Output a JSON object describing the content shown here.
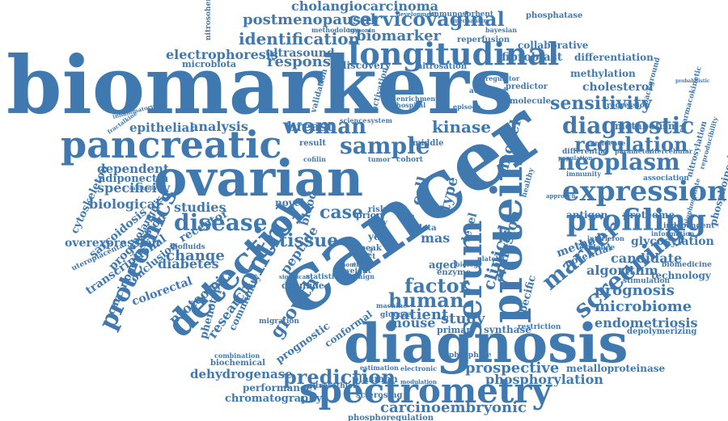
{
  "color": "#3f79b0",
  "words": [
    {
      "text": "cancer"
    },
    {
      "text": "biomarkers"
    },
    {
      "text": "ovarian"
    },
    {
      "text": "diagnosis"
    },
    {
      "text": "pancreatic"
    },
    {
      "text": "spectrometry"
    },
    {
      "text": "longitudinal"
    },
    {
      "text": "protein"
    },
    {
      "text": "detection"
    },
    {
      "text": "serum"
    },
    {
      "text": "expression"
    },
    {
      "text": "proteomics"
    },
    {
      "text": "profiling"
    },
    {
      "text": "control"
    },
    {
      "text": "diagnostic"
    },
    {
      "text": "screening"
    },
    {
      "text": "sample"
    },
    {
      "text": "woman"
    },
    {
      "text": "neoplasm"
    },
    {
      "text": "regulation"
    },
    {
      "text": "disease"
    },
    {
      "text": "factor"
    },
    {
      "text": "marker"
    },
    {
      "text": "sensitivity"
    },
    {
      "text": "prediction"
    },
    {
      "text": "human"
    },
    {
      "text": "patient"
    },
    {
      "text": "identification"
    },
    {
      "text": "response"
    },
    {
      "text": "cervicovaginal"
    },
    {
      "text": "postmenopausal"
    },
    {
      "text": "cholangiocarcinoma"
    },
    {
      "text": "biomarker"
    },
    {
      "text": "electrophoresis"
    },
    {
      "text": "ultrasound"
    },
    {
      "text": "analysis"
    },
    {
      "text": "epithelial"
    },
    {
      "text": "breast"
    },
    {
      "text": "kinase"
    },
    {
      "text": "tissue"
    },
    {
      "text": "clinical"
    },
    {
      "text": "case"
    },
    {
      "text": "change"
    },
    {
      "text": "biological"
    },
    {
      "text": "specificity"
    },
    {
      "text": "dependent"
    },
    {
      "text": "adiponectin"
    },
    {
      "text": "studies"
    },
    {
      "text": "diabetes"
    },
    {
      "text": "colorectal"
    },
    {
      "text": "proteomic"
    },
    {
      "text": "research"
    },
    {
      "text": "growth"
    },
    {
      "text": "mouse"
    },
    {
      "text": "study"
    },
    {
      "text": "adhesion"
    },
    {
      "text": "prognosis"
    },
    {
      "text": "microbiome"
    },
    {
      "text": "endometriosis"
    },
    {
      "text": "algorithm"
    },
    {
      "text": "candidate"
    },
    {
      "text": "glycosylation"
    },
    {
      "text": "proteome"
    },
    {
      "text": "antigen"
    },
    {
      "text": "method"
    },
    {
      "text": "prospective"
    },
    {
      "text": "phosphorylation"
    },
    {
      "text": "carcinoembryonic"
    },
    {
      "text": "dehydrogenase"
    },
    {
      "text": "chromatography"
    },
    {
      "text": "performance"
    },
    {
      "text": "metalloproteinase"
    },
    {
      "text": "plasmon"
    },
    {
      "text": "cholesterol"
    },
    {
      "text": "metabolism"
    },
    {
      "text": "differentiation"
    },
    {
      "text": "methylation"
    },
    {
      "text": "fibroblast"
    },
    {
      "text": "collaborative"
    },
    {
      "text": "phosphatase"
    },
    {
      "text": "reperfusion"
    },
    {
      "text": "nitrosation"
    },
    {
      "text": "discovery"
    },
    {
      "text": "enrichment"
    },
    {
      "text": "hospital"
    },
    {
      "text": "microbiota"
    },
    {
      "text": "nitrosohemoglobin"
    },
    {
      "text": "methodology"
    },
    {
      "text": "troponin"
    },
    {
      "text": "immunosorbent"
    },
    {
      "text": "development"
    },
    {
      "text": "mechanism"
    },
    {
      "text": "bayesian"
    },
    {
      "text": "predictor"
    },
    {
      "text": "regulator"
    },
    {
      "text": "molecule"
    },
    {
      "text": "activated"
    },
    {
      "text": "episode"
    },
    {
      "text": "activation"
    },
    {
      "text": "validation"
    },
    {
      "text": "system"
    },
    {
      "text": "science"
    },
    {
      "text": "effect"
    },
    {
      "text": "result"
    },
    {
      "text": "middle"
    },
    {
      "text": "cofilin"
    },
    {
      "text": "tumor"
    },
    {
      "text": "cohort"
    },
    {
      "text": "cell"
    },
    {
      "text": "type"
    },
    {
      "text": "model"
    },
    {
      "text": "level"
    },
    {
      "text": "mas"
    },
    {
      "text": "data"
    },
    {
      "text": "year"
    },
    {
      "text": "peak"
    },
    {
      "text": "tract"
    },
    {
      "text": "weight"
    },
    {
      "text": "month"
    },
    {
      "text": "benign"
    },
    {
      "text": "enzyme"
    },
    {
      "text": "aged"
    },
    {
      "text": "biology"
    },
    {
      "text": "peptide"
    },
    {
      "text": "glucose"
    },
    {
      "text": "primary"
    },
    {
      "text": "synthase"
    },
    {
      "text": "restriction"
    },
    {
      "text": "potential"
    },
    {
      "text": "technology"
    },
    {
      "text": "stimulation"
    },
    {
      "text": "depolymerizing"
    },
    {
      "text": "biomedicine"
    },
    {
      "text": "evidence"
    },
    {
      "text": "interferon"
    },
    {
      "text": "information"
    },
    {
      "text": "immunity"
    },
    {
      "text": "association"
    },
    {
      "text": "population"
    },
    {
      "text": "parameter"
    },
    {
      "text": "intercellular"
    },
    {
      "text": "differential"
    },
    {
      "text": "confidence"
    },
    {
      "text": "regression"
    },
    {
      "text": "independent"
    },
    {
      "text": "nitrosylation"
    },
    {
      "text": "phosphoinositide"
    },
    {
      "text": "reproducibility"
    },
    {
      "text": "pharmacokinetic"
    },
    {
      "text": "biophosphate"
    },
    {
      "text": "background"
    },
    {
      "text": "probabilistic"
    },
    {
      "text": "overexpression"
    },
    {
      "text": "cytoskeleton"
    },
    {
      "text": "sarcoidosis"
    },
    {
      "text": "progression"
    },
    {
      "text": "transcriptional"
    },
    {
      "text": "uteroplacental"
    },
    {
      "text": "cholangitis"
    },
    {
      "text": "carcinogenesis"
    },
    {
      "text": "conclusion"
    },
    {
      "text": "receptor"
    },
    {
      "text": "biofluids"
    },
    {
      "text": "phenotype"
    },
    {
      "text": "community"
    },
    {
      "text": "migration"
    },
    {
      "text": "prognostic"
    },
    {
      "text": "conformal"
    },
    {
      "text": "sclerosing"
    },
    {
      "text": "estimation"
    },
    {
      "text": "phosphate"
    },
    {
      "text": "electronic"
    },
    {
      "text": "biochemical"
    },
    {
      "text": "combination"
    },
    {
      "text": "nitrosothiols"
    },
    {
      "text": "phosphoregulation"
    },
    {
      "text": "modulation"
    },
    {
      "text": "machine"
    },
    {
      "text": "disulfide"
    },
    {
      "text": "significant"
    },
    {
      "text": "statistic"
    },
    {
      "text": "inflammatory"
    },
    {
      "text": "fractalkine"
    },
    {
      "text": "calcitonin"
    },
    {
      "text": "novel"
    },
    {
      "text": "blood"
    },
    {
      "text": "risk"
    },
    {
      "text": "prior"
    },
    {
      "text": "time"
    },
    {
      "text": "invasive"
    },
    {
      "text": "ductal"
    },
    {
      "text": "body"
    },
    {
      "text": "platelet"
    },
    {
      "text": "healthy"
    },
    {
      "text": "approach"
    },
    {
      "text": "specific"
    }
  ]
}
